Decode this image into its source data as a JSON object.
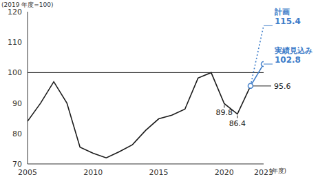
{
  "chart_data": {
    "type": "line",
    "y_label": "(2019 年度=100)",
    "x_label": "(年度)",
    "x": [
      2005,
      2006,
      2007,
      2008,
      2009,
      2010,
      2011,
      2012,
      2013,
      2014,
      2015,
      2016,
      2017,
      2018,
      2019,
      2020,
      2021,
      2022,
      2023
    ],
    "series": [
      {
        "color": "#1a1a1a",
        "values": [
          84,
          90,
          97,
          90,
          75.5,
          73.5,
          72,
          74,
          76.3,
          81,
          84.8,
          86,
          88,
          98.2,
          100,
          89.8,
          86.4,
          95.6,
          null
        ]
      },
      {
        "name": "計画",
        "color": "#3d7cc9",
        "line_style": "dotted",
        "values": [
          null,
          null,
          null,
          null,
          null,
          null,
          null,
          null,
          null,
          null,
          null,
          null,
          null,
          null,
          null,
          null,
          null,
          95.6,
          115.4
        ]
      },
      {
        "name": "実績見込み",
        "color": "#3d7cc9",
        "line_style": "solid",
        "marker": "circle",
        "values": [
          null,
          null,
          null,
          null,
          null,
          null,
          null,
          null,
          null,
          null,
          null,
          null,
          null,
          null,
          null,
          null,
          null,
          95.6,
          102.8
        ]
      }
    ],
    "hlines": [
      100
    ],
    "annotations": [
      {
        "x": 2020,
        "y": 89.8,
        "text": "89.8"
      },
      {
        "x": 2021,
        "y": 86.4,
        "text": "86.4"
      },
      {
        "x": 2022,
        "y": 95.6,
        "text": "95.6"
      }
    ],
    "xlim": [
      2005,
      2023
    ],
    "xticks": [
      2005,
      2010,
      2015,
      2020,
      2023
    ],
    "ylim": [
      70,
      120
    ],
    "yticks": [
      70,
      80,
      90,
      100,
      110,
      120
    ],
    "grid": false
  }
}
